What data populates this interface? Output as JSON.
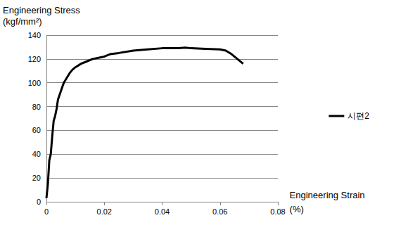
{
  "chart_data": {
    "type": "line",
    "x_label": "Engineering Strain\n(%)",
    "y_label": "Engineering Stress\n(kgf/mm²)",
    "x": [
      0,
      0.0005,
      0.001,
      0.0015,
      0.002,
      0.0025,
      0.003,
      0.0035,
      0.004,
      0.005,
      0.006,
      0.007,
      0.008,
      0.009,
      0.01,
      0.012,
      0.014,
      0.016,
      0.018,
      0.02,
      0.022,
      0.025,
      0.03,
      0.035,
      0.04,
      0.045,
      0.048,
      0.05,
      0.055,
      0.06,
      0.062,
      0.064,
      0.066,
      0.068
    ],
    "series": [
      {
        "name": "시편2",
        "color": "#000000",
        "values": [
          3,
          15,
          35,
          40,
          55,
          68,
          72,
          78,
          86,
          93,
          100,
          104,
          108,
          111,
          113,
          116,
          118,
          120,
          121,
          122,
          124,
          125,
          127,
          128,
          129,
          129,
          129.5,
          129,
          128.5,
          128,
          127,
          124,
          120,
          116
        ]
      }
    ],
    "xlim": [
      0,
      0.08
    ],
    "xticks": [
      0,
      0.02,
      0.04,
      0.06,
      0.08
    ],
    "ylim": [
      0,
      140
    ],
    "yticks": [
      0,
      20,
      40,
      60,
      80,
      100,
      120,
      140
    ],
    "grid": true,
    "legend": "right"
  }
}
